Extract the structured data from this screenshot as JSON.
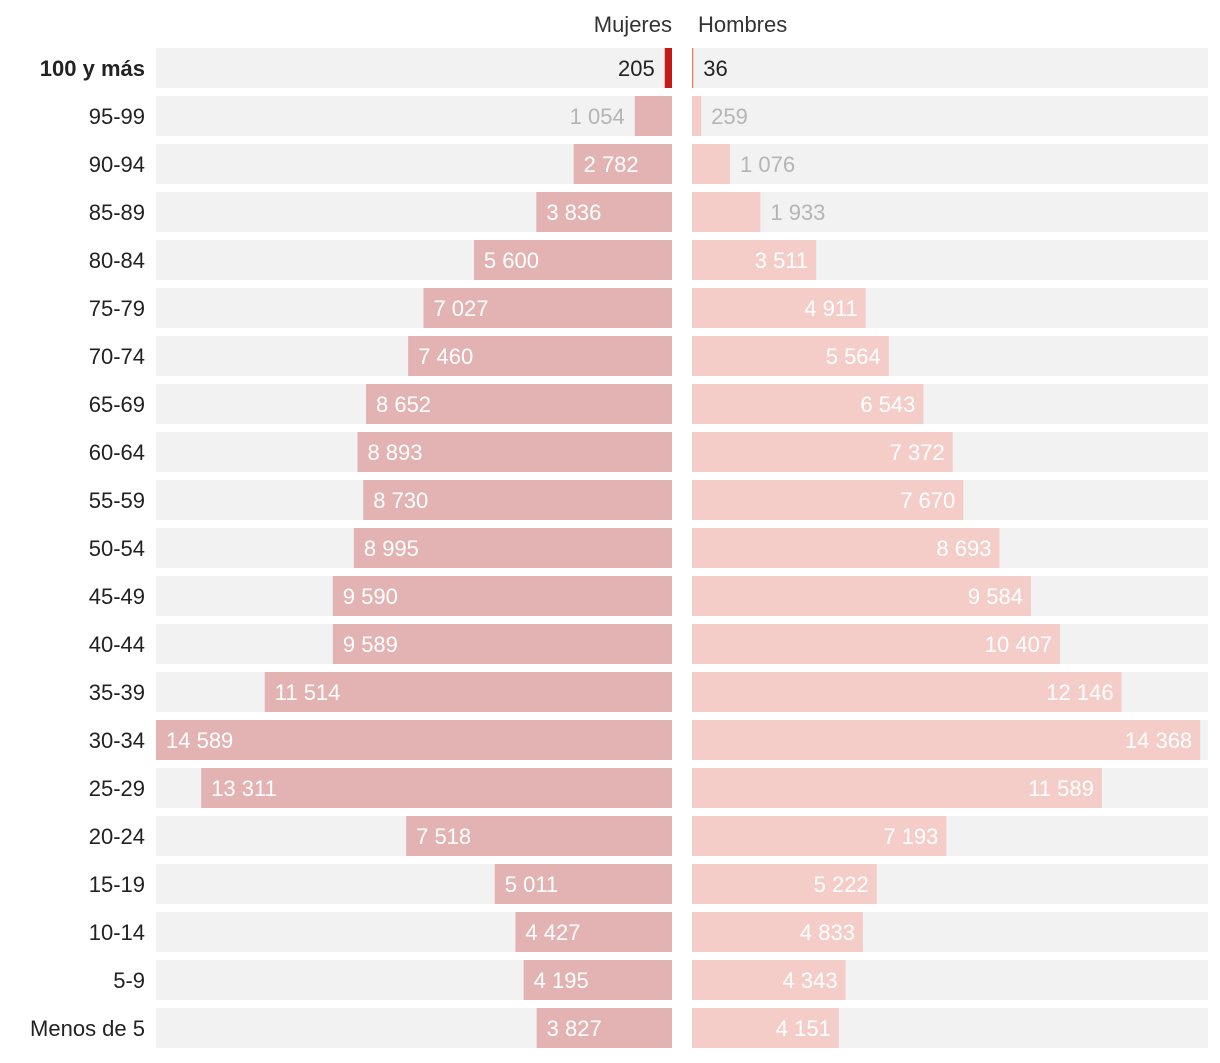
{
  "chart_data": {
    "type": "bar",
    "orientation": "horizontal-diverging",
    "title": "",
    "series": [
      {
        "name": "Mujeres",
        "side": "left",
        "color": "#e3b3b3",
        "highlight_color": "#c41a1a",
        "values": [
          205,
          1054,
          2782,
          3836,
          5600,
          7027,
          7460,
          8652,
          8893,
          8730,
          8995,
          9590,
          9589,
          11514,
          14589,
          13311,
          7518,
          5011,
          4427,
          4195,
          3827
        ]
      },
      {
        "name": "Hombres",
        "side": "right",
        "color": "#f5cdc8",
        "highlight_color": "#ef7d63",
        "values": [
          36,
          259,
          1076,
          1933,
          3511,
          4911,
          5564,
          6543,
          7372,
          7670,
          8693,
          9584,
          10407,
          12146,
          14368,
          11589,
          7193,
          5222,
          4833,
          4343,
          4151
        ]
      }
    ],
    "categories": [
      "100 y más",
      "95-99",
      "90-94",
      "85-89",
      "80-84",
      "75-79",
      "70-74",
      "65-69",
      "60-64",
      "55-59",
      "50-54",
      "45-49",
      "40-44",
      "35-39",
      "30-34",
      "25-29",
      "20-24",
      "15-19",
      "10-14",
      "5-9",
      "Menos de 5"
    ],
    "labels_mujeres": [
      "205",
      "1 054",
      "2 782",
      "3 836",
      "5 600",
      "7 027",
      "7 460",
      "8 652",
      "8 893",
      "8 730",
      "8 995",
      "9 590",
      "9 589",
      "11 514",
      "14 589",
      "13 311",
      "7 518",
      "5 011",
      "4 427",
      "4 195",
      "3 827"
    ],
    "labels_hombres": [
      "36",
      "259",
      "1 076",
      "1 933",
      "3 511",
      "4 911",
      "5 564",
      "6 543",
      "7 372",
      "7 670",
      "8 693",
      "9 584",
      "10 407",
      "12 146",
      "14 368",
      "11 589",
      "7 193",
      "5 222",
      "4 833",
      "4 343",
      "4 151"
    ],
    "highlighted_category": "100 y más",
    "xlim": [
      0,
      14589
    ],
    "grid": false,
    "legend": "top-center",
    "background_band_color": "#f2f2f2"
  }
}
